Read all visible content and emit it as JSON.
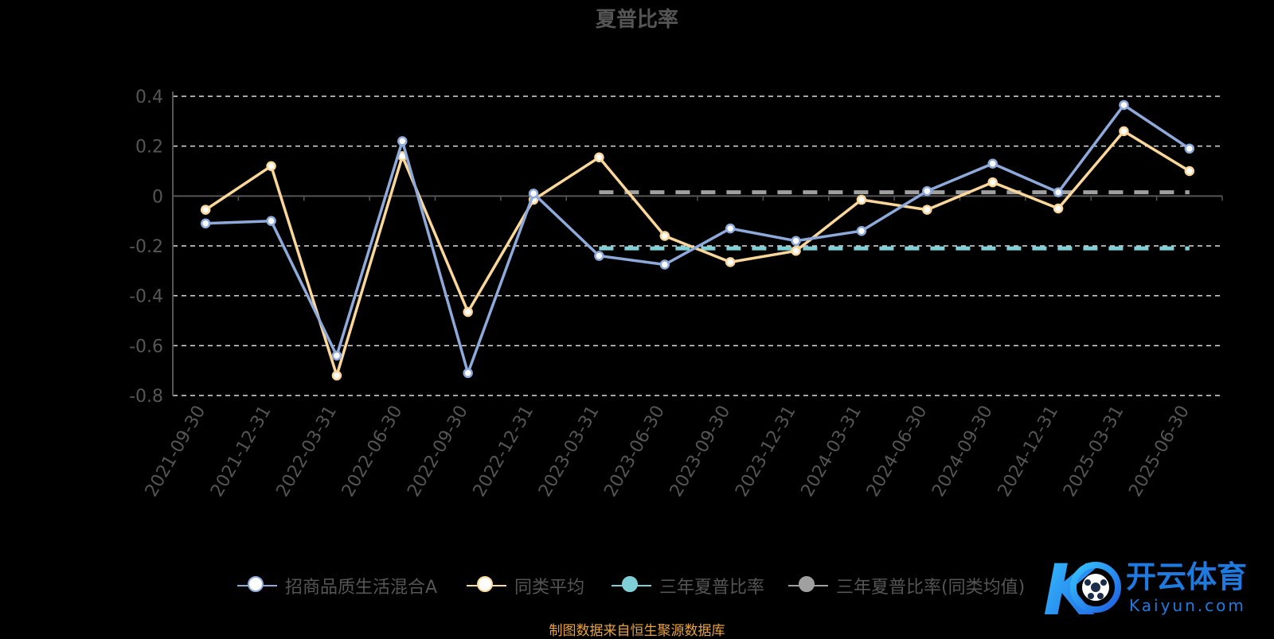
{
  "chart_data": {
    "type": "line",
    "title": "夏普比率",
    "categories": [
      "2021-09-30",
      "2021-12-31",
      "2022-03-31",
      "2022-06-30",
      "2022-09-30",
      "2022-12-31",
      "2023-03-31",
      "2023-06-30",
      "2023-09-30",
      "2023-12-31",
      "2024-03-31",
      "2024-06-30",
      "2024-09-30",
      "2024-12-31",
      "2025-03-31",
      "2025-06-30"
    ],
    "yticks": [
      "0.4",
      "0.2",
      "0",
      "-0.2",
      "-0.4",
      "-0.6",
      "-0.8"
    ],
    "ylim": [
      -0.8,
      0.4
    ],
    "grid": true,
    "legend_position": "bottom",
    "series": [
      {
        "name": "招商品质生活混合A",
        "color": "#8eaadb",
        "marker": "#ffffff",
        "style": "solid",
        "values": [
          -0.11,
          -0.1,
          -0.64,
          0.22,
          -0.71,
          0.01,
          -0.24,
          -0.275,
          -0.13,
          -0.18,
          -0.14,
          0.02,
          0.13,
          0.015,
          0.365,
          0.19
        ]
      },
      {
        "name": "同类平均",
        "color": "#fbd79a",
        "marker": "#ffffff",
        "style": "solid",
        "values": [
          -0.055,
          0.12,
          -0.72,
          0.16,
          -0.465,
          -0.015,
          0.155,
          -0.16,
          -0.265,
          -0.22,
          -0.015,
          -0.055,
          0.055,
          -0.05,
          0.26,
          0.1
        ]
      },
      {
        "name": "三年夏普比率",
        "color": "#7ecfd6",
        "marker": "#7ecfd6",
        "style": "dashed",
        "values": [
          null,
          null,
          null,
          null,
          null,
          null,
          -0.21,
          -0.21,
          -0.21,
          -0.21,
          -0.21,
          -0.21,
          -0.21,
          -0.21,
          -0.21,
          -0.21
        ]
      },
      {
        "name": "三年夏普比率(同类均值)",
        "color": "#a0a0a0",
        "marker": "#a0a0a0",
        "style": "dashed",
        "values": [
          null,
          null,
          null,
          null,
          null,
          null,
          0.015,
          0.015,
          0.015,
          0.015,
          0.015,
          0.015,
          0.015,
          0.015,
          0.015,
          0.015
        ]
      }
    ]
  },
  "source_note": "制图数据来自恒生聚源数据库",
  "watermark": {
    "brand": "开云体育",
    "domain": "Kaiyun.com",
    "logo_letter": "K"
  }
}
